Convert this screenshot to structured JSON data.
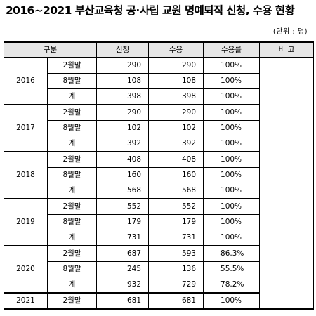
{
  "title": "2016~2021 부산교육청 공·사립 교원 명예퇴직 신청, 수용 현황",
  "unit": "(단위 : 명)",
  "headers": {
    "category": "구분",
    "applied": "신청",
    "accepted": "수용",
    "rate": "수용률",
    "note": "비  고"
  },
  "groups": [
    {
      "year": "2016",
      "rows": [
        {
          "period": "2월말",
          "applied": "290",
          "accepted": "290",
          "rate": "100%"
        },
        {
          "period": "8월말",
          "applied": "108",
          "accepted": "108",
          "rate": "100%"
        },
        {
          "period": "계",
          "applied": "398",
          "accepted": "398",
          "rate": "100%"
        }
      ]
    },
    {
      "year": "2017",
      "rows": [
        {
          "period": "2월말",
          "applied": "290",
          "accepted": "290",
          "rate": "100%"
        },
        {
          "period": "8월말",
          "applied": "102",
          "accepted": "102",
          "rate": "100%"
        },
        {
          "period": "계",
          "applied": "392",
          "accepted": "392",
          "rate": "100%"
        }
      ]
    },
    {
      "year": "2018",
      "rows": [
        {
          "period": "2월말",
          "applied": "408",
          "accepted": "408",
          "rate": "100%"
        },
        {
          "period": "8월말",
          "applied": "160",
          "accepted": "160",
          "rate": "100%"
        },
        {
          "period": "계",
          "applied": "568",
          "accepted": "568",
          "rate": "100%"
        }
      ]
    },
    {
      "year": "2019",
      "rows": [
        {
          "period": "2월말",
          "applied": "552",
          "accepted": "552",
          "rate": "100%"
        },
        {
          "period": "8월말",
          "applied": "179",
          "accepted": "179",
          "rate": "100%"
        },
        {
          "period": "계",
          "applied": "731",
          "accepted": "731",
          "rate": "100%"
        }
      ]
    },
    {
      "year": "2020",
      "rows": [
        {
          "period": "2월말",
          "applied": "687",
          "accepted": "593",
          "rate": "86.3%"
        },
        {
          "period": "8월말",
          "applied": "245",
          "accepted": "136",
          "rate": "55.5%"
        },
        {
          "period": "계",
          "applied": "932",
          "accepted": "729",
          "rate": "78.2%"
        }
      ]
    },
    {
      "year": "2021",
      "rows": [
        {
          "period": "2월말",
          "applied": "681",
          "accepted": "681",
          "rate": "100%"
        }
      ]
    }
  ]
}
